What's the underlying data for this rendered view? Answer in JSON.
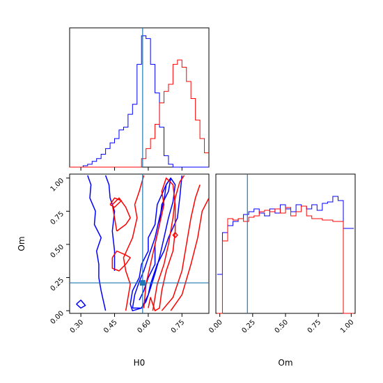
{
  "colors": {
    "series_a": "#0000ff",
    "series_b": "#ff0000",
    "truth": "#1f77b4"
  },
  "chart_data": [
    {
      "type": "histogram",
      "panel": "H0 marginal",
      "xlim": [
        0.25,
        0.87
      ],
      "truth": 0.575,
      "bin_edges": [
        0.25,
        0.27,
        0.29,
        0.31,
        0.33,
        0.35,
        0.37,
        0.39,
        0.41,
        0.43,
        0.45,
        0.47,
        0.49,
        0.51,
        0.53,
        0.55,
        0.57,
        0.59,
        0.61,
        0.63,
        0.65,
        0.67,
        0.69,
        0.71,
        0.73,
        0.75,
        0.77,
        0.79,
        0.81,
        0.83,
        0.85,
        0.87
      ],
      "series": [
        {
          "color": "blue",
          "counts": [
            0,
            0,
            0,
            1,
            2,
            4,
            6,
            9,
            13,
            17,
            20,
            26,
            28,
            37,
            44,
            72,
            92,
            90,
            72,
            52,
            28,
            8,
            2,
            0,
            0,
            0,
            0,
            0,
            0,
            0,
            0
          ]
        },
        {
          "color": "red",
          "counts": [
            0,
            0,
            0,
            0,
            0,
            0,
            0,
            0,
            0,
            0,
            0,
            0,
            0,
            0,
            0,
            0,
            6,
            13,
            20,
            30,
            45,
            53,
            58,
            72,
            75,
            70,
            60,
            48,
            33,
            20,
            10
          ]
        }
      ]
    },
    {
      "type": "contour",
      "panel": "H0 vs Om",
      "xlabel": "H0",
      "ylabel": "Om",
      "xlim": [
        0.25,
        0.87
      ],
      "ylim": [
        -0.02,
        1.03
      ],
      "x_ticks": [
        "0.30",
        "0.45",
        "0.60",
        "0.75"
      ],
      "y_ticks": [
        "0.00",
        "0.25",
        "0.50",
        "0.75",
        "1.00"
      ],
      "truth": [
        0.575,
        0.21
      ],
      "contours": [
        {
          "color": "blue",
          "points": [
            [
              0.33,
              1.02
            ],
            [
              0.345,
              0.95
            ],
            [
              0.34,
              0.85
            ],
            [
              0.365,
              0.75
            ],
            [
              0.36,
              0.65
            ],
            [
              0.39,
              0.55
            ],
            [
              0.37,
              0.45
            ],
            [
              0.38,
              0.35
            ],
            [
              0.38,
              0.25
            ],
            [
              0.39,
              0.15
            ],
            [
              0.41,
              0.0
            ]
          ]
        },
        {
          "color": "blue",
          "points": [
            [
              0.41,
              1.02
            ],
            [
              0.425,
              0.95
            ],
            [
              0.43,
              0.85
            ],
            [
              0.45,
              0.75
            ],
            [
              0.44,
              0.6
            ],
            [
              0.45,
              0.45
            ],
            [
              0.45,
              0.3
            ]
          ]
        },
        {
          "color": "blue",
          "points": [
            [
              0.75,
              1.02
            ],
            [
              0.74,
              0.85
            ],
            [
              0.73,
              0.7
            ],
            [
              0.69,
              0.55
            ],
            [
              0.67,
              0.45
            ],
            [
              0.64,
              0.35
            ],
            [
              0.61,
              0.2
            ],
            [
              0.6,
              0.12
            ],
            [
              0.57,
              0.02
            ],
            [
              0.53,
              0.0
            ],
            [
              0.52,
              0.05
            ],
            [
              0.53,
              0.15
            ],
            [
              0.56,
              0.25
            ],
            [
              0.57,
              0.35
            ],
            [
              0.6,
              0.45
            ],
            [
              0.6,
              0.55
            ],
            [
              0.63,
              0.65
            ],
            [
              0.64,
              0.8
            ],
            [
              0.68,
              0.95
            ],
            [
              0.7,
              1.0
            ],
            [
              0.69,
              0.9
            ],
            [
              0.66,
              0.8
            ],
            [
              0.65,
              0.65
            ],
            [
              0.63,
              0.5
            ],
            [
              0.63,
              0.35
            ],
            [
              0.6,
              0.25
            ],
            [
              0.58,
              0.15
            ],
            [
              0.56,
              0.08
            ]
          ]
        },
        {
          "color": "blue",
          "points": [
            [
              0.53,
              0.02
            ],
            [
              0.54,
              0.12
            ],
            [
              0.56,
              0.22
            ],
            [
              0.58,
              0.3
            ],
            [
              0.6,
              0.4
            ],
            [
              0.63,
              0.55
            ],
            [
              0.65,
              0.7
            ],
            [
              0.67,
              0.83
            ],
            [
              0.68,
              0.95
            ],
            [
              0.7,
              1.0
            ],
            [
              0.72,
              0.95
            ],
            [
              0.71,
              0.82
            ],
            [
              0.69,
              0.7
            ],
            [
              0.67,
              0.55
            ],
            [
              0.65,
              0.4
            ],
            [
              0.63,
              0.28
            ],
            [
              0.61,
              0.17
            ],
            [
              0.59,
              0.07
            ],
            [
              0.57,
              0.02
            ],
            [
              0.53,
              0.02
            ]
          ]
        },
        {
          "color": "blue",
          "points": [
            [
              0.28,
              0.05
            ],
            [
              0.3,
              0.08
            ],
            [
              0.32,
              0.04
            ],
            [
              0.3,
              0.02
            ],
            [
              0.28,
              0.05
            ]
          ]
        },
        {
          "color": "red",
          "points": [
            [
              0.5,
              0.0
            ],
            [
              0.52,
              0.2
            ],
            [
              0.5,
              0.3
            ],
            [
              0.49,
              0.4
            ],
            [
              0.53,
              0.55
            ],
            [
              0.55,
              0.7
            ],
            [
              0.54,
              0.8
            ],
            [
              0.56,
              0.9
            ],
            [
              0.58,
              1.02
            ]
          ]
        },
        {
          "color": "red",
          "points": [
            [
              0.58,
              0.02
            ],
            [
              0.59,
              0.2
            ],
            [
              0.61,
              0.35
            ],
            [
              0.63,
              0.5
            ],
            [
              0.65,
              0.65
            ],
            [
              0.67,
              0.8
            ],
            [
              0.66,
              0.9
            ],
            [
              0.68,
              1.0
            ],
            [
              0.71,
              0.95
            ],
            [
              0.72,
              0.8
            ],
            [
              0.72,
              0.6
            ],
            [
              0.71,
              0.45
            ],
            [
              0.68,
              0.3
            ],
            [
              0.66,
              0.15
            ],
            [
              0.65,
              0.02
            ],
            [
              0.63,
              0.0
            ],
            [
              0.61,
              0.1
            ],
            [
              0.6,
              0.02
            ]
          ]
        },
        {
          "color": "red",
          "points": [
            [
              0.62,
              0.0
            ],
            [
              0.64,
              0.2
            ],
            [
              0.67,
              0.35
            ],
            [
              0.69,
              0.5
            ],
            [
              0.71,
              0.7
            ],
            [
              0.72,
              0.85
            ],
            [
              0.74,
              0.97
            ],
            [
              0.76,
              1.02
            ]
          ]
        },
        {
          "color": "red",
          "points": [
            [
              0.66,
              0.0
            ],
            [
              0.71,
              0.1
            ],
            [
              0.75,
              0.3
            ],
            [
              0.77,
              0.5
            ],
            [
              0.79,
              0.7
            ],
            [
              0.81,
              0.85
            ],
            [
              0.83,
              0.95
            ]
          ]
        },
        {
          "color": "red",
          "points": [
            [
              0.7,
              0.0
            ],
            [
              0.75,
              0.12
            ],
            [
              0.79,
              0.35
            ],
            [
              0.82,
              0.55
            ],
            [
              0.84,
              0.75
            ],
            [
              0.87,
              0.85
            ]
          ]
        },
        {
          "color": "red",
          "points": [
            [
              0.44,
              0.4
            ],
            [
              0.46,
              0.45
            ],
            [
              0.5,
              0.42
            ],
            [
              0.52,
              0.4
            ],
            [
              0.5,
              0.35
            ],
            [
              0.47,
              0.3
            ],
            [
              0.44,
              0.32
            ],
            [
              0.44,
              0.4
            ]
          ]
        },
        {
          "color": "red",
          "points": [
            [
              0.46,
              0.6
            ],
            [
              0.5,
              0.65
            ],
            [
              0.52,
              0.7
            ],
            [
              0.5,
              0.78
            ],
            [
              0.47,
              0.85
            ],
            [
              0.44,
              0.8
            ],
            [
              0.45,
              0.7
            ],
            [
              0.46,
              0.6
            ]
          ]
        },
        {
          "color": "red",
          "points": [
            [
              0.43,
              0.8
            ],
            [
              0.45,
              0.85
            ],
            [
              0.48,
              0.83
            ],
            [
              0.45,
              0.78
            ],
            [
              0.43,
              0.8
            ]
          ]
        },
        {
          "color": "red",
          "points": [
            [
              0.72,
              0.55
            ],
            [
              0.73,
              0.57
            ],
            [
              0.72,
              0.59
            ],
            [
              0.71,
              0.57
            ],
            [
              0.72,
              0.55
            ]
          ]
        }
      ]
    },
    {
      "type": "histogram",
      "panel": "Om marginal",
      "xlabel": "Om",
      "xlim": [
        -0.03,
        1.03
      ],
      "x_ticks": [
        "0.00",
        "0.25",
        "0.50",
        "0.75",
        "1.00"
      ],
      "truth": 0.21,
      "bin_edges": [
        -0.02,
        0.0,
        0.02,
        0.04,
        0.06,
        0.08,
        0.1,
        0.12,
        0.14,
        0.16,
        0.18,
        0.2,
        0.22,
        0.24,
        0.26,
        0.28,
        0.3,
        0.32,
        0.34,
        0.36,
        0.38,
        0.4,
        0.42,
        0.44,
        0.46,
        0.48,
        0.5,
        0.52,
        0.54,
        0.56,
        0.58,
        0.6,
        0.62,
        0.64,
        0.66,
        0.68,
        0.7,
        0.72,
        0.74,
        0.76,
        0.78,
        0.8,
        0.82,
        0.84,
        0.86,
        0.88,
        0.9,
        0.92,
        0.94,
        0.96,
        0.98,
        1.0,
        1.02
      ],
      "series": [
        {
          "color": "blue",
          "counts": [
            0.28,
            0.28,
            0.58,
            0.58,
            0.63,
            0.63,
            0.66,
            0.66,
            0.68,
            0.68,
            0.71,
            0.71,
            0.73,
            0.73,
            0.75,
            0.75,
            0.72,
            0.72,
            0.7,
            0.7,
            0.75,
            0.75,
            0.72,
            0.72,
            0.78,
            0.78,
            0.75,
            0.75,
            0.73,
            0.73,
            0.78,
            0.78,
            0.77,
            0.77,
            0.75,
            0.75,
            0.78,
            0.78,
            0.74,
            0.74,
            0.79,
            0.79,
            0.8,
            0.8,
            0.84,
            0.84,
            0.81,
            0.81,
            0.61,
            0.61,
            0.61,
            0.61
          ]
        },
        {
          "color": "red",
          "counts": [
            0.0,
            0.0,
            0.52,
            0.52,
            0.68,
            0.68,
            0.67,
            0.67,
            0.68,
            0.68,
            0.66,
            0.66,
            0.69,
            0.69,
            0.7,
            0.7,
            0.73,
            0.73,
            0.74,
            0.74,
            0.73,
            0.73,
            0.75,
            0.75,
            0.72,
            0.72,
            0.76,
            0.76,
            0.7,
            0.7,
            0.73,
            0.73,
            0.77,
            0.77,
            0.7,
            0.7,
            0.68,
            0.68,
            0.68,
            0.68,
            0.67,
            0.67,
            0.67,
            0.67,
            0.66,
            0.66,
            0.66,
            0.66,
            0.0,
            0.0,
            0.0,
            0.0
          ]
        }
      ]
    }
  ]
}
